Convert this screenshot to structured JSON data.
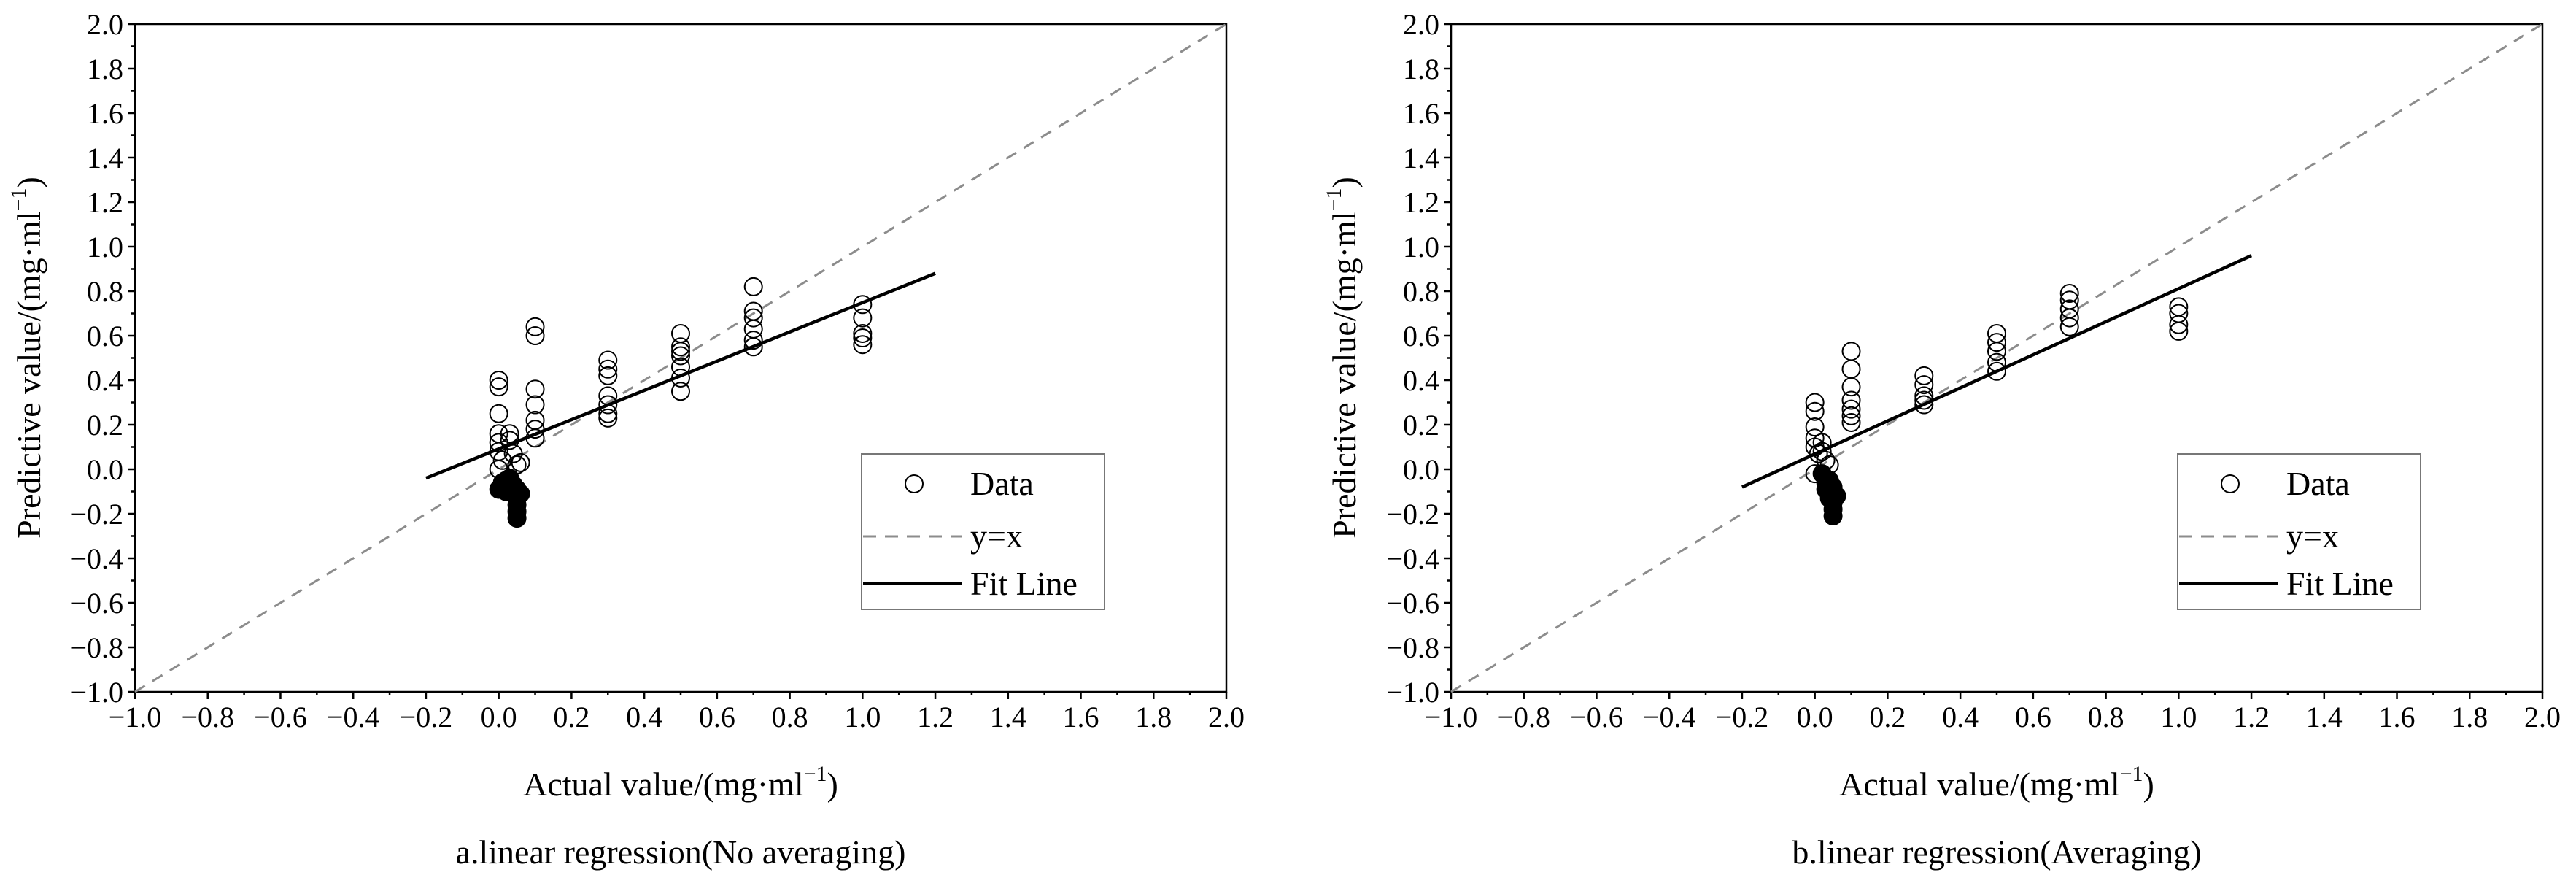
{
  "figure": {
    "captions": [
      "a.linear regression(No averaging)",
      "b.linear regression(Averaging)"
    ]
  },
  "chart_data": [
    {
      "type": "scatter",
      "title": "",
      "caption": "a.linear regression(No averaging)",
      "xlabel": "Actual value/(mg·ml",
      "ylabel": "Predictive value/(mg·ml",
      "unit_exp": "−1",
      "unit_close": ")",
      "xlim": [
        -1.0,
        2.0
      ],
      "ylim": [
        -1.0,
        2.0
      ],
      "xticks": [
        "−1.0",
        "−0.8",
        "−0.6",
        "−0.4",
        "−0.2",
        "0.0",
        "0.2",
        "0.4",
        "0.6",
        "0.8",
        "1.0",
        "1.2",
        "1.4",
        "1.6",
        "1.8",
        "2.0"
      ],
      "yticks": [
        "−1.0",
        "−0.8",
        "−0.6",
        "−0.4",
        "−0.2",
        "0.0",
        "0.2",
        "0.4",
        "0.6",
        "0.8",
        "1.0",
        "1.2",
        "1.4",
        "1.6",
        "1.8",
        "2.0"
      ],
      "grid": false,
      "legend": {
        "position": "bottom-right",
        "entries": [
          "Data",
          "y=x",
          "Fit Line"
        ]
      },
      "series": [
        {
          "name": "Data",
          "marker": "open-circle",
          "points": [
            [
              0.0,
              0.4
            ],
            [
              0.0,
              0.37
            ],
            [
              0.0,
              0.25
            ],
            [
              0.0,
              0.16
            ],
            [
              0.0,
              0.12
            ],
            [
              0.0,
              0.08
            ],
            [
              0.01,
              0.04
            ],
            [
              0.0,
              0.0
            ],
            [
              0.03,
              0.16
            ],
            [
              0.03,
              0.13
            ],
            [
              0.04,
              0.07
            ],
            [
              0.05,
              0.02
            ],
            [
              0.06,
              0.03
            ],
            [
              0.1,
              0.64
            ],
            [
              0.1,
              0.6
            ],
            [
              0.1,
              0.36
            ],
            [
              0.1,
              0.29
            ],
            [
              0.1,
              0.22
            ],
            [
              0.1,
              0.18
            ],
            [
              0.1,
              0.14
            ],
            [
              0.3,
              0.49
            ],
            [
              0.3,
              0.45
            ],
            [
              0.3,
              0.42
            ],
            [
              0.3,
              0.33
            ],
            [
              0.3,
              0.29
            ],
            [
              0.3,
              0.25
            ],
            [
              0.3,
              0.23
            ],
            [
              0.5,
              0.61
            ],
            [
              0.5,
              0.55
            ],
            [
              0.5,
              0.53
            ],
            [
              0.5,
              0.51
            ],
            [
              0.5,
              0.46
            ],
            [
              0.5,
              0.41
            ],
            [
              0.5,
              0.35
            ],
            [
              0.7,
              0.82
            ],
            [
              0.7,
              0.71
            ],
            [
              0.7,
              0.68
            ],
            [
              0.7,
              0.63
            ],
            [
              0.7,
              0.58
            ],
            [
              0.7,
              0.55
            ],
            [
              1.0,
              0.74
            ],
            [
              1.0,
              0.68
            ],
            [
              1.0,
              0.61
            ],
            [
              1.0,
              0.59
            ],
            [
              1.0,
              0.56
            ]
          ]
        },
        {
          "name": "",
          "marker": "filled-circle",
          "points": [
            [
              0.0,
              -0.09
            ],
            [
              0.01,
              -0.06
            ],
            [
              0.02,
              -0.1
            ],
            [
              0.02,
              -0.05
            ],
            [
              0.03,
              -0.08
            ],
            [
              0.03,
              -0.04
            ],
            [
              0.04,
              -0.07
            ],
            [
              0.04,
              -0.1
            ],
            [
              0.05,
              -0.09
            ],
            [
              0.05,
              -0.12
            ],
            [
              0.05,
              -0.16
            ],
            [
              0.05,
              -0.19
            ],
            [
              0.05,
              -0.22
            ],
            [
              0.06,
              -0.11
            ]
          ]
        },
        {
          "name": "y=x",
          "style": "dashed",
          "color": "#8c8c8c",
          "x": [
            -1.0,
            2.0
          ],
          "y": [
            -1.0,
            2.0
          ]
        },
        {
          "name": "Fit Line",
          "style": "solid",
          "color": "#000000",
          "x": [
            -0.2,
            1.2
          ],
          "y": [
            -0.04,
            0.88
          ]
        }
      ]
    },
    {
      "type": "scatter",
      "title": "",
      "caption": "b.linear regression(Averaging)",
      "xlabel": "Actual value/(mg·ml",
      "ylabel": "Predictive value/(mg·ml",
      "unit_exp": "−1",
      "unit_close": ")",
      "xlim": [
        -1.0,
        2.0
      ],
      "ylim": [
        -1.0,
        2.0
      ],
      "xticks": [
        "−1.0",
        "−0.8",
        "−0.6",
        "−0.4",
        "−0.2",
        "0.0",
        "0.2",
        "0.4",
        "0.6",
        "0.8",
        "1.0",
        "1.2",
        "1.4",
        "1.6",
        "1.8",
        "2.0"
      ],
      "yticks": [
        "−1.0",
        "−0.8",
        "−0.6",
        "−0.4",
        "−0.2",
        "0.0",
        "0.2",
        "0.4",
        "0.6",
        "0.8",
        "1.0",
        "1.2",
        "1.4",
        "1.6",
        "1.8",
        "2.0"
      ],
      "grid": false,
      "legend": {
        "position": "bottom-right",
        "entries": [
          "Data",
          "y=x",
          "Fit Line"
        ]
      },
      "series": [
        {
          "name": "Data",
          "marker": "open-circle",
          "points": [
            [
              0.0,
              0.3
            ],
            [
              0.0,
              0.26
            ],
            [
              0.0,
              0.19
            ],
            [
              0.0,
              0.14
            ],
            [
              0.0,
              0.1
            ],
            [
              0.01,
              0.07
            ],
            [
              0.0,
              -0.02
            ],
            [
              0.02,
              0.12
            ],
            [
              0.02,
              0.08
            ],
            [
              0.03,
              0.04
            ],
            [
              0.04,
              0.02
            ],
            [
              0.1,
              0.53
            ],
            [
              0.1,
              0.45
            ],
            [
              0.1,
              0.37
            ],
            [
              0.1,
              0.31
            ],
            [
              0.1,
              0.27
            ],
            [
              0.1,
              0.24
            ],
            [
              0.1,
              0.21
            ],
            [
              0.3,
              0.42
            ],
            [
              0.3,
              0.38
            ],
            [
              0.3,
              0.33
            ],
            [
              0.3,
              0.31
            ],
            [
              0.3,
              0.29
            ],
            [
              0.5,
              0.61
            ],
            [
              0.5,
              0.57
            ],
            [
              0.5,
              0.53
            ],
            [
              0.5,
              0.48
            ],
            [
              0.5,
              0.44
            ],
            [
              0.7,
              0.79
            ],
            [
              0.7,
              0.76
            ],
            [
              0.7,
              0.72
            ],
            [
              0.7,
              0.68
            ],
            [
              0.7,
              0.64
            ],
            [
              1.0,
              0.73
            ],
            [
              1.0,
              0.7
            ],
            [
              1.0,
              0.65
            ],
            [
              1.0,
              0.62
            ]
          ]
        },
        {
          "name": "",
          "marker": "filled-circle",
          "points": [
            [
              0.02,
              -0.02
            ],
            [
              0.03,
              -0.06
            ],
            [
              0.03,
              -0.09
            ],
            [
              0.04,
              -0.05
            ],
            [
              0.04,
              -0.11
            ],
            [
              0.04,
              -0.13
            ],
            [
              0.05,
              -0.08
            ],
            [
              0.05,
              -0.15
            ],
            [
              0.05,
              -0.18
            ],
            [
              0.05,
              -0.21
            ],
            [
              0.06,
              -0.12
            ]
          ]
        },
        {
          "name": "y=x",
          "style": "dashed",
          "color": "#8c8c8c",
          "x": [
            -1.0,
            2.0
          ],
          "y": [
            -1.0,
            2.0
          ]
        },
        {
          "name": "Fit Line",
          "style": "solid",
          "color": "#000000",
          "x": [
            -0.2,
            1.2
          ],
          "y": [
            -0.08,
            0.96
          ]
        }
      ]
    }
  ]
}
